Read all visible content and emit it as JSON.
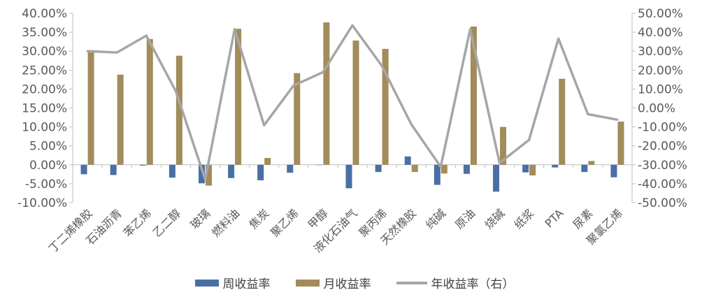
{
  "chart_data": {
    "type": "bar",
    "categories": [
      "丁二烯橡胶",
      "石油沥青",
      "苯乙烯",
      "乙二醇",
      "玻璃",
      "燃料油",
      "焦炭",
      "聚乙烯",
      "甲醇",
      "液化石油气",
      "聚丙烯",
      "天然橡胶",
      "纯碱",
      "原油",
      "烧碱",
      "纸浆",
      "PTA",
      "尿素",
      "聚氯乙烯"
    ],
    "series": [
      {
        "name": "周收益率",
        "type": "bar",
        "axis": "left",
        "color": "#4a6fa5",
        "values": [
          -2.5,
          -2.7,
          -0.2,
          -3.4,
          -4.9,
          -3.5,
          -4.1,
          -2.1,
          0.0,
          -6.2,
          -1.9,
          2.2,
          -5.3,
          -2.4,
          -7.1,
          -2.0,
          -0.7,
          -1.9,
          -3.3
        ]
      },
      {
        "name": "月收益率",
        "type": "bar",
        "axis": "left",
        "color": "#a38b5a",
        "values": [
          29.9,
          23.8,
          33.2,
          28.8,
          -5.5,
          35.9,
          1.8,
          24.2,
          37.6,
          32.8,
          30.6,
          -1.9,
          -2.3,
          36.5,
          10.0,
          -2.8,
          22.7,
          1.0,
          11.4
        ]
      },
      {
        "name": "年收益率（右）",
        "type": "line",
        "axis": "right",
        "color": "#a6a6a6",
        "values": [
          30.0,
          29.3,
          38.2,
          8.9,
          -37.7,
          41.6,
          -9.1,
          11.8,
          18.9,
          43.6,
          22.3,
          -8.6,
          -31.1,
          41.5,
          -29.0,
          -16.9,
          36.6,
          -3.3,
          -6.2
        ]
      }
    ],
    "y_left": {
      "min": -10,
      "max": 40,
      "step": 5
    },
    "y_right": {
      "min": -50,
      "max": 50,
      "step": 10
    },
    "tick_format": "percent_2dp",
    "legend_position": "bottom",
    "grid": false
  },
  "legend": {
    "weekly": "周收益率",
    "monthly": "月收益率",
    "yearly": "年收益率（右）"
  },
  "colors": {
    "weekly": "#4a6fa5",
    "monthly": "#a38b5a",
    "yearly": "#a6a6a6",
    "axis": "#bfbfbf"
  }
}
